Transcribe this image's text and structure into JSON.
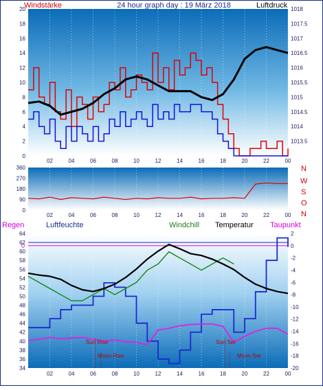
{
  "header": {
    "left": "Windstärke",
    "title": "24 hour graph day : 19 März 2018",
    "right": "Luftdruck"
  },
  "legend3": {
    "rain": "Regen",
    "humidity": "Luftfeuchte",
    "windchill": "Windchill",
    "temperature": "Temperatur",
    "dewpoint": "Taupunkt"
  },
  "compass": [
    "N",
    "W",
    "S",
    "O",
    "N"
  ],
  "events": {
    "sun_rise": "Sun Rise",
    "sun_set": "Sun Set",
    "moon_rise": "Moon Rise",
    "moon_set": "Moon Set"
  },
  "colors": {
    "wind": "#e00000",
    "gust": "#1010e0",
    "pressure": "#000000",
    "humidity": "#1a2ad0",
    "windchill": "#1e8a1e",
    "temperature": "#000000",
    "dewpoint": "#e020e0",
    "axis_text": "#1a1a60"
  },
  "x_ticks": [
    "02",
    "04",
    "06",
    "08",
    "10",
    "12",
    "14",
    "16",
    "18",
    "20",
    "22",
    "00"
  ],
  "chart_data": [
    {
      "type": "line",
      "title": "24 hour graph day : 19 März 2018",
      "xlim": [
        0,
        24
      ],
      "ylim_left": [
        0,
        20
      ],
      "ylim_right": [
        1013,
        1018
      ],
      "left_axis_label": "Windstärke",
      "right_axis_label": "Luftdruck",
      "left_ticks": [
        "0",
        "2",
        "4",
        "6",
        "8",
        "10",
        "12",
        "14",
        "16",
        "18",
        "20"
      ],
      "right_ticks": [
        "1013.5",
        "1014",
        "1014.5",
        "1015",
        "1015.5",
        "1016",
        "1016.5",
        "1017",
        "1017.5",
        "1018"
      ],
      "series": [
        {
          "axis": "left",
          "x": [
            0,
            0.5,
            1,
            1.5,
            2,
            2.5,
            3,
            3.5,
            4,
            4.5,
            5,
            5.5,
            6,
            6.5,
            7,
            7.5,
            8,
            8.5,
            9,
            9.5,
            10,
            10.5,
            11,
            11.5,
            12,
            12.5,
            13,
            13.5,
            14,
            14.5,
            15,
            15.5,
            16,
            16.5,
            17,
            17.5,
            18,
            18.5,
            19,
            19.5,
            20,
            20.5,
            21,
            21.5,
            22,
            22.5,
            23,
            23.5,
            24
          ],
          "values": [
            9,
            12,
            8,
            7,
            10,
            6,
            5,
            9,
            4,
            8,
            7,
            5,
            8,
            6,
            7,
            10,
            9,
            12,
            8,
            9,
            11,
            10,
            9,
            14,
            10,
            12,
            9,
            13,
            11,
            12,
            14,
            13,
            11,
            12,
            10,
            7,
            5,
            3,
            1,
            0,
            0,
            1,
            1,
            2,
            1,
            1,
            2,
            0,
            1
          ]
        },
        {
          "axis": "left",
          "x": [
            0,
            0.5,
            1,
            1.5,
            2,
            2.5,
            3,
            3.5,
            4,
            4.5,
            5,
            5.5,
            6,
            6.5,
            7,
            7.5,
            8,
            8.5,
            9,
            9.5,
            10,
            10.5,
            11,
            11.5,
            12,
            12.5,
            13,
            13.5,
            14,
            14.5,
            15,
            15.5,
            16,
            16.5,
            17,
            17.5,
            18,
            18.5,
            19,
            19.5,
            20,
            20.5,
            21,
            21.5,
            22,
            22.5,
            23,
            23.5,
            24
          ],
          "values": [
            5,
            6,
            4,
            3,
            5,
            2,
            1,
            4,
            2,
            4,
            3,
            2,
            4,
            2,
            3,
            5,
            4,
            6,
            4,
            5,
            6,
            5,
            4,
            7,
            5,
            6,
            5,
            7,
            6,
            6,
            7,
            7,
            6,
            6,
            5,
            3,
            2,
            1,
            0,
            0,
            0,
            0,
            0,
            0,
            0,
            0,
            0,
            0,
            0
          ]
        },
        {
          "axis": "right",
          "x": [
            0,
            1,
            2,
            3,
            4,
            5,
            6,
            7,
            8,
            9,
            10,
            11,
            12,
            13,
            14,
            15,
            16,
            17,
            18,
            19,
            20,
            21,
            22,
            23,
            24
          ],
          "values": [
            1014.8,
            1014.85,
            1014.7,
            1014.4,
            1014.5,
            1014.6,
            1014.8,
            1015.1,
            1015.3,
            1015.6,
            1015.7,
            1015.6,
            1015.4,
            1015.2,
            1015.2,
            1015.2,
            1015.0,
            1014.9,
            1015.1,
            1015.6,
            1016.3,
            1016.6,
            1016.7,
            1016.6,
            1016.5
          ]
        }
      ]
    },
    {
      "type": "line",
      "xlim": [
        0,
        24
      ],
      "ylim": [
        0,
        360
      ],
      "y_ticks": [
        "0",
        "90",
        "180",
        "270",
        "360"
      ],
      "series": [
        {
          "x": [
            0,
            1,
            2,
            3,
            4,
            5,
            6,
            7,
            8,
            9,
            10,
            11,
            12,
            13,
            14,
            15,
            16,
            17,
            18,
            19,
            20,
            21,
            22,
            23,
            24
          ],
          "values": [
            100,
            95,
            110,
            90,
            105,
            100,
            95,
            110,
            100,
            90,
            100,
            95,
            105,
            100,
            100,
            110,
            95,
            100,
            100,
            105,
            100,
            220,
            230,
            225,
            225
          ]
        }
      ]
    },
    {
      "type": "line",
      "xlim": [
        0,
        24
      ],
      "ylim_left": [
        34,
        64
      ],
      "ylim_right": [
        -20,
        2
      ],
      "left_ticks": [
        "34",
        "36",
        "38",
        "40",
        "42",
        "44",
        "46",
        "48",
        "50",
        "52",
        "54",
        "56",
        "58",
        "60",
        "62",
        "64"
      ],
      "right_ticks": [
        "-20",
        "-18",
        "-16",
        "-14",
        "-12",
        "-10",
        "-8",
        "-6",
        "-4",
        "-2",
        "0",
        "2"
      ],
      "series": [
        {
          "axis": "left",
          "x": [
            0,
            1,
            2,
            3,
            4,
            5,
            6,
            7,
            8,
            9,
            10,
            11,
            12,
            13,
            14,
            15,
            16,
            17,
            18,
            19,
            20,
            21,
            22,
            23,
            24
          ],
          "values": [
            43,
            43,
            45,
            47,
            48,
            48,
            50,
            53,
            52,
            50,
            44,
            40,
            36,
            35,
            38,
            42,
            46,
            47,
            47,
            42,
            45,
            51,
            58,
            63,
            61
          ]
        },
        {
          "axis": "right",
          "x": [
            0,
            1,
            2,
            3,
            4,
            5,
            6,
            7,
            8,
            9,
            10,
            11,
            12,
            13,
            14,
            15,
            16,
            17,
            18,
            19,
            20,
            21,
            22,
            23,
            24
          ],
          "values": [
            -5,
            -6,
            -7,
            -8,
            -9,
            -9,
            -8,
            -7,
            -8,
            -7,
            -6,
            -4,
            -3,
            -1,
            -2,
            -3,
            -4,
            -3,
            -2,
            -3,
            null,
            null,
            null,
            null,
            null
          ]
        },
        {
          "axis": "right",
          "x": [
            0,
            1,
            2,
            3,
            4,
            5,
            6,
            7,
            8,
            9,
            10,
            11,
            12,
            13,
            14,
            15,
            16,
            17,
            18,
            19,
            20,
            21,
            22,
            23,
            24
          ],
          "values": [
            -4.5,
            -4.8,
            -5,
            -5.5,
            -6.5,
            -7.2,
            -7.5,
            -7,
            -6.3,
            -5.2,
            -3.8,
            -2.2,
            -0.9,
            0.2,
            -0.5,
            -1.3,
            -1.6,
            -2.2,
            -3,
            -3.9,
            -5.2,
            -6.3,
            -7,
            -7.5,
            -7.8
          ]
        },
        {
          "axis": "right",
          "x": [
            0,
            1,
            2,
            3,
            4,
            5,
            6,
            7,
            8,
            9,
            10,
            11,
            12,
            13,
            14,
            15,
            16,
            17,
            18,
            19,
            20,
            21,
            22,
            23,
            24
          ],
          "values": [
            -15.5,
            -15.3,
            -15,
            -15.2,
            -15.1,
            -15,
            -15.3,
            -15.6,
            -15.4,
            -15.7,
            -15.8,
            -16.2,
            -13.8,
            -13.5,
            -13.1,
            -12.9,
            -12.8,
            -12.8,
            -13.2,
            -15.8,
            -14.8,
            -14,
            -13.5,
            -13.5,
            -14.5
          ]
        }
      ],
      "reference_lines": {
        "humidity_line": 62,
        "zero_line": 0
      }
    }
  ]
}
